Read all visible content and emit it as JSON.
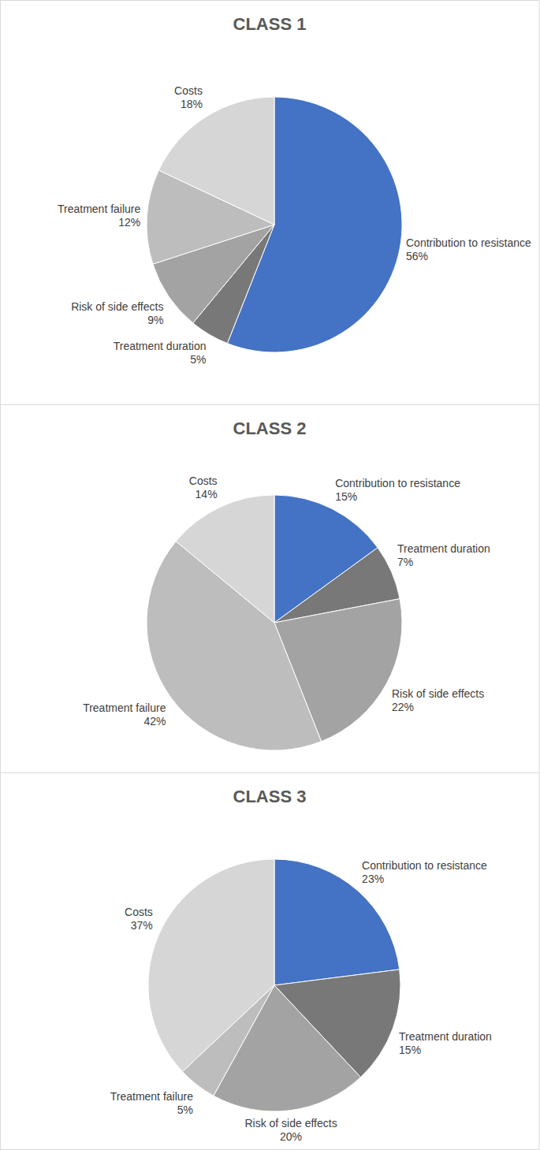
{
  "chart_data": [
    {
      "type": "pie",
      "title": "CLASS 1",
      "categories": [
        "Contribution to resistance",
        "Treatment duration",
        "Risk of side effects",
        "Treatment failure",
        "Costs"
      ],
      "values": [
        56,
        5,
        9,
        12,
        18
      ],
      "value_labels": [
        "56%",
        "5%",
        "9%",
        "12%",
        "18%"
      ],
      "colors": [
        "#4472c4",
        "#787878",
        "#a3a3a3",
        "#bdbdbd",
        "#d6d6d6"
      ],
      "data_labels": true
    },
    {
      "type": "pie",
      "title": "CLASS 2",
      "categories": [
        "Contribution to resistance",
        "Treatment duration",
        "Risk of side effects",
        "Treatment failure",
        "Costs"
      ],
      "values": [
        15,
        7,
        22,
        42,
        14
      ],
      "value_labels": [
        "15%",
        "7%",
        "22%",
        "42%",
        "14%"
      ],
      "colors": [
        "#4472c4",
        "#787878",
        "#a3a3a3",
        "#bdbdbd",
        "#d6d6d6"
      ],
      "data_labels": true
    },
    {
      "type": "pie",
      "title": "CLASS 3",
      "categories": [
        "Contribution to resistance",
        "Treatment duration",
        "Risk of side effects",
        "Treatment failure",
        "Costs"
      ],
      "values": [
        23,
        15,
        20,
        5,
        37
      ],
      "value_labels": [
        "23%",
        "15%",
        "20%",
        "5%",
        "37%"
      ],
      "colors": [
        "#4472c4",
        "#787878",
        "#a3a3a3",
        "#bdbdbd",
        "#d6d6d6"
      ],
      "data_labels": true
    }
  ]
}
